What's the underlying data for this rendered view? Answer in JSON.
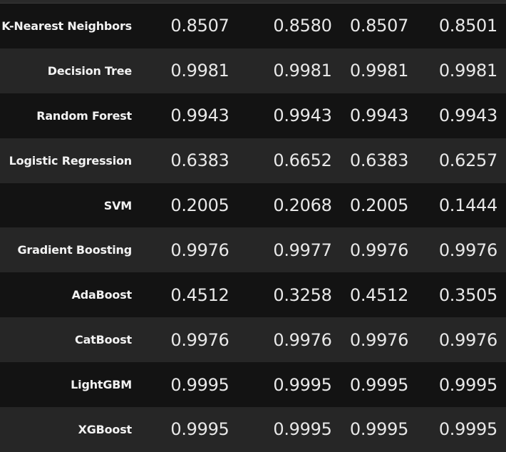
{
  "table": {
    "rows": [
      {
        "model": "K-Nearest Neighbors",
        "values": [
          "0.8507",
          "0.8580",
          "0.8507",
          "0.8501"
        ]
      },
      {
        "model": "Decision Tree",
        "values": [
          "0.9981",
          "0.9981",
          "0.9981",
          "0.9981"
        ]
      },
      {
        "model": "Random Forest",
        "values": [
          "0.9943",
          "0.9943",
          "0.9943",
          "0.9943"
        ]
      },
      {
        "model": "Logistic Regression",
        "values": [
          "0.6383",
          "0.6652",
          "0.6383",
          "0.6257"
        ]
      },
      {
        "model": "SVM",
        "values": [
          "0.2005",
          "0.2068",
          "0.2005",
          "0.1444"
        ]
      },
      {
        "model": "Gradient Boosting",
        "values": [
          "0.9976",
          "0.9977",
          "0.9976",
          "0.9976"
        ]
      },
      {
        "model": "AdaBoost",
        "values": [
          "0.4512",
          "0.3258",
          "0.4512",
          "0.3505"
        ]
      },
      {
        "model": "CatBoost",
        "values": [
          "0.9976",
          "0.9976",
          "0.9976",
          "0.9976"
        ]
      },
      {
        "model": "LightGBM",
        "values": [
          "0.9995",
          "0.9995",
          "0.9995",
          "0.9995"
        ]
      },
      {
        "model": "XGBoost",
        "values": [
          "0.9995",
          "0.9995",
          "0.9995",
          "0.9995"
        ]
      }
    ]
  }
}
